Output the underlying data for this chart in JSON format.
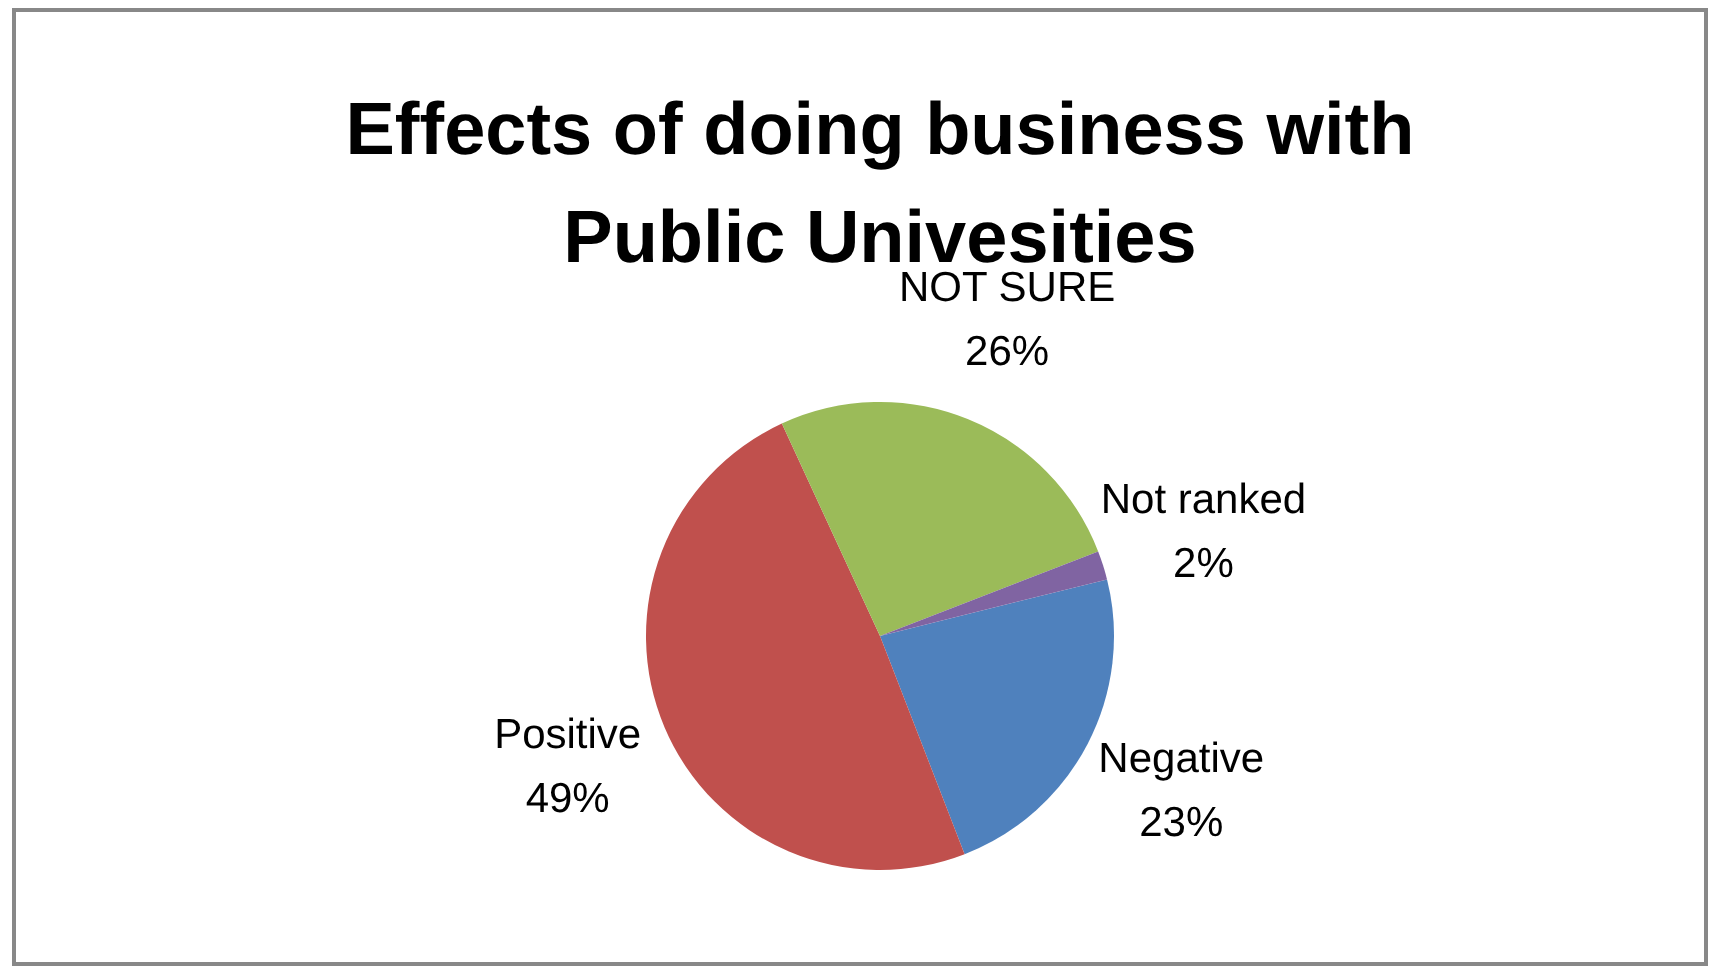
{
  "chart_data": {
    "type": "pie",
    "title": "Effects of doing business with Public Univesities",
    "categories": [
      "Negative",
      "Positive",
      "NOT SURE",
      "Not ranked"
    ],
    "values": [
      23,
      49,
      26,
      2
    ],
    "value_labels": [
      "23%",
      "49%",
      "26%",
      "2%"
    ],
    "colors": [
      "#4f81bd",
      "#c0504d",
      "#9bbb59",
      "#8064a2"
    ],
    "legend": false
  }
}
